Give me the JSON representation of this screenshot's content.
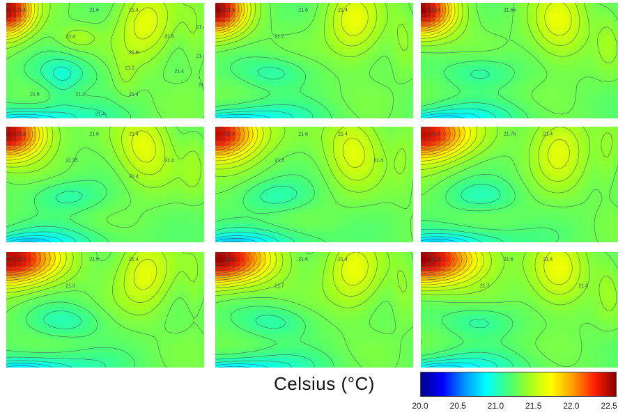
{
  "chart_data": {
    "type": "heatmap",
    "layout": {
      "rows": 3,
      "cols": 3
    },
    "panels": [
      {
        "id": "r1c1",
        "contour_labels": [
          "21.4",
          "21.6",
          "21.4",
          "21.4",
          "21.6",
          "21.8",
          "21.2",
          "21.4",
          "21.4",
          "21.6",
          "21.2",
          "21.4",
          "21.4",
          "21.4",
          "21.2"
        ]
      },
      {
        "id": "r1c2",
        "contour_labels": [
          "21.4",
          "21.6",
          "21.4",
          "21.7"
        ]
      },
      {
        "id": "r1c3",
        "contour_labels": [
          "21.4",
          "21.65"
        ]
      },
      {
        "id": "r2c1",
        "contour_labels": [
          "21.4",
          "21.6",
          "21.4",
          "21.35",
          "21.4",
          "21.4"
        ]
      },
      {
        "id": "r2c2",
        "contour_labels": [
          "21.4",
          "21.6",
          "21.4",
          "21.4",
          "21.4"
        ]
      },
      {
        "id": "r2c3",
        "contour_labels": [
          "21.4",
          "21.75",
          "21.4"
        ]
      },
      {
        "id": "r3c1",
        "contour_labels": [
          "21.4",
          "21.6",
          "21.4",
          "21.3"
        ]
      },
      {
        "id": "r3c2",
        "contour_labels": [
          "21.4",
          "21.6",
          "21.4",
          "21.7"
        ]
      },
      {
        "id": "r3c3",
        "contour_labels": [
          "21.4",
          "21.6",
          "21.4",
          "21.7",
          "21.3"
        ]
      }
    ],
    "colorbar": {
      "title": "Celsius (°C)",
      "range": [
        20.0,
        22.6
      ],
      "ticks": [
        "20.0",
        "20.5",
        "21.0",
        "21.5",
        "22.0",
        "22.5"
      ],
      "colors": [
        "#00008b",
        "#0000ff",
        "#0090ff",
        "#00ffff",
        "#40ff80",
        "#a0ff20",
        "#ffff00",
        "#ffa000",
        "#ff2000",
        "#8b0000"
      ]
    }
  }
}
